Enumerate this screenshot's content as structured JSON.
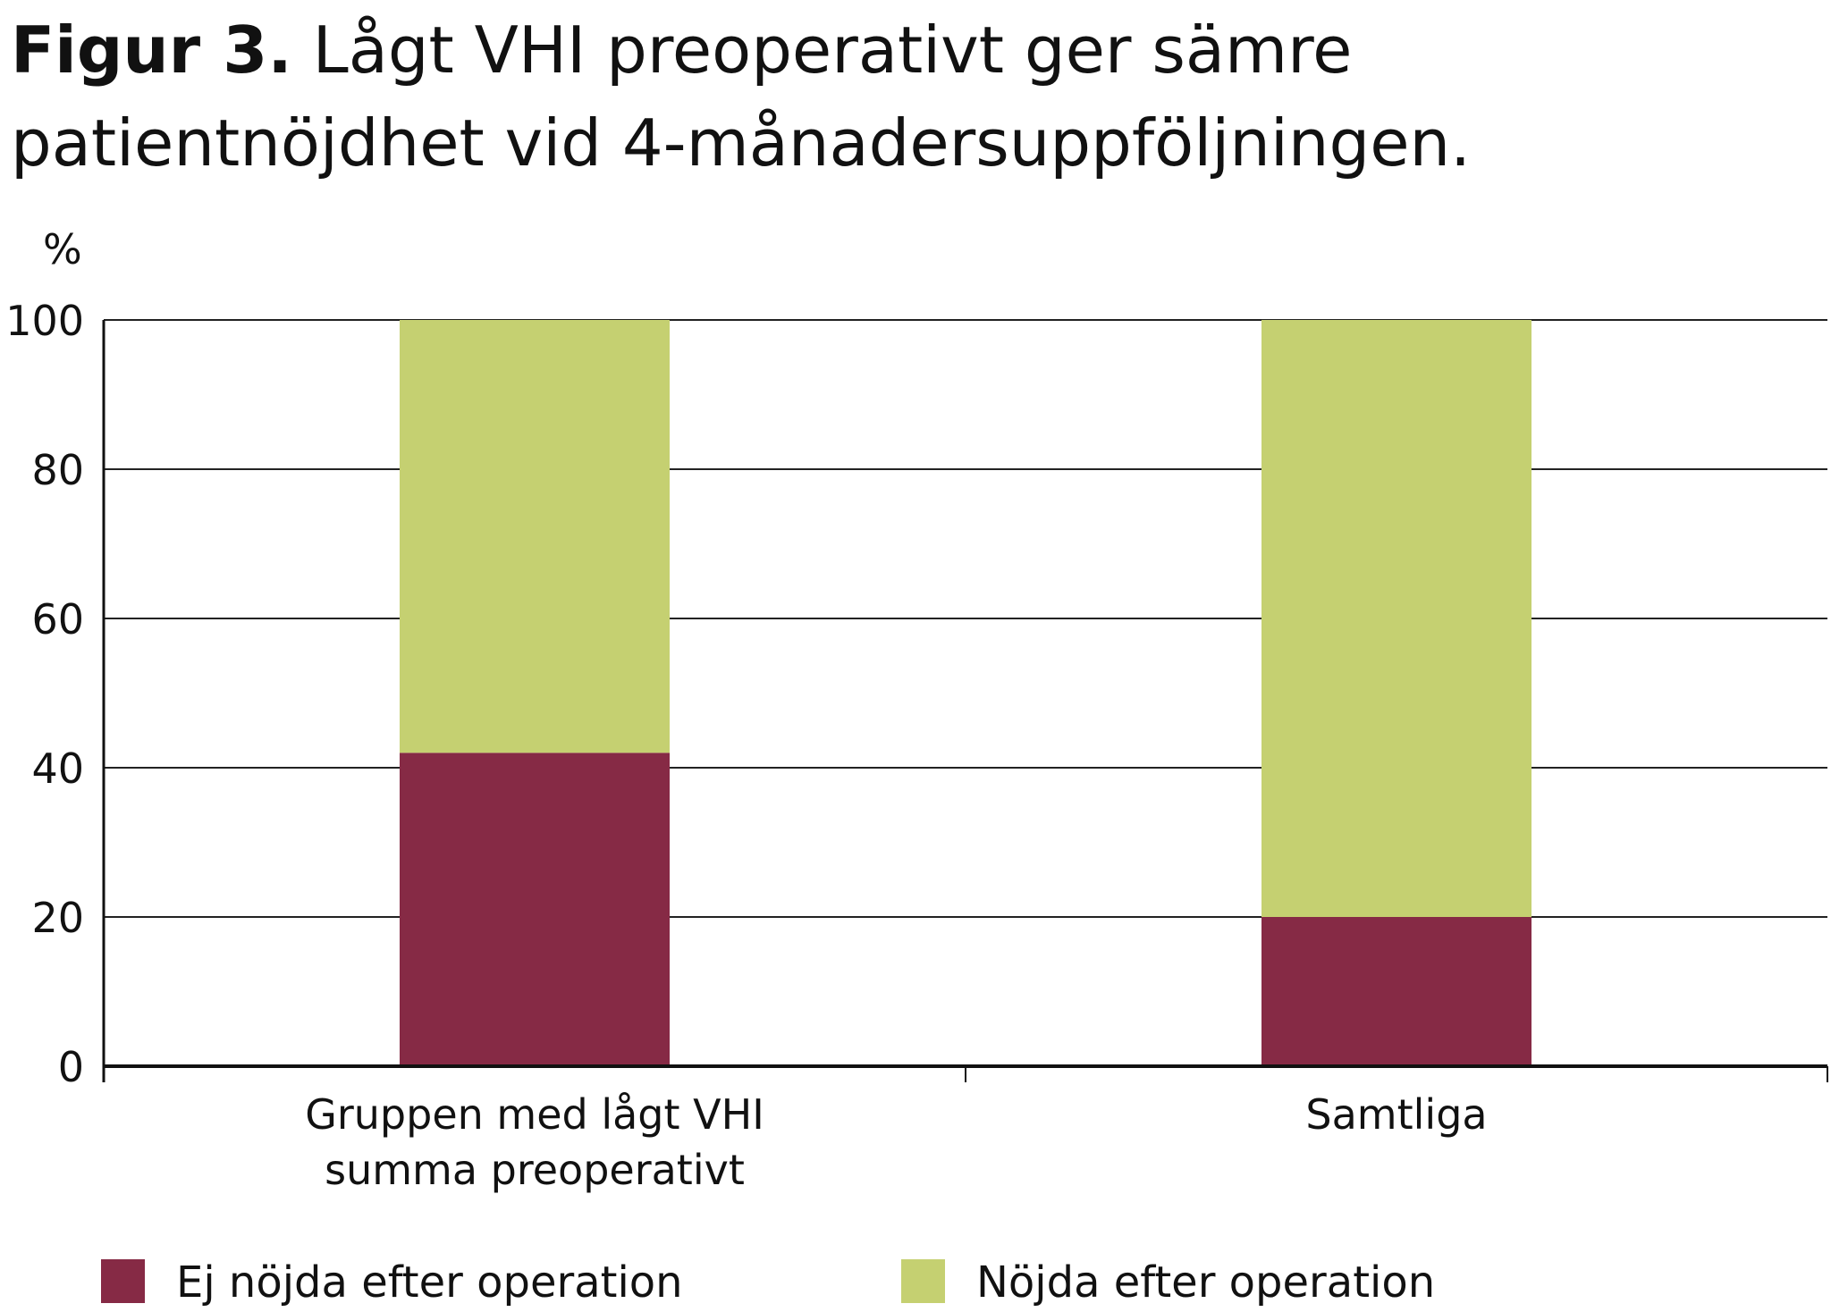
{
  "figure": {
    "title_lead": "Figur 3.",
    "title_rest": "Lågt VHI preoperativt ger sämre patientnöjdhet vid 4-månadersuppföljningen.",
    "unit": "%"
  },
  "chart_data": {
    "type": "bar",
    "stacked": true,
    "categories": [
      [
        "Gruppen med lågt VHI",
        "summa preoperativt"
      ],
      [
        "Samtliga"
      ]
    ],
    "series": [
      {
        "name": "Ej nöjda efter operation",
        "color": "#862a45",
        "values": [
          42,
          20
        ]
      },
      {
        "name": "Nöjda efter operation",
        "color": "#c5d071",
        "values": [
          58,
          80
        ]
      }
    ],
    "ylim": [
      0,
      100
    ],
    "yticks": [
      0,
      20,
      40,
      60,
      80,
      100
    ],
    "ylabel": "%",
    "grid": true,
    "legend": "bottom"
  }
}
